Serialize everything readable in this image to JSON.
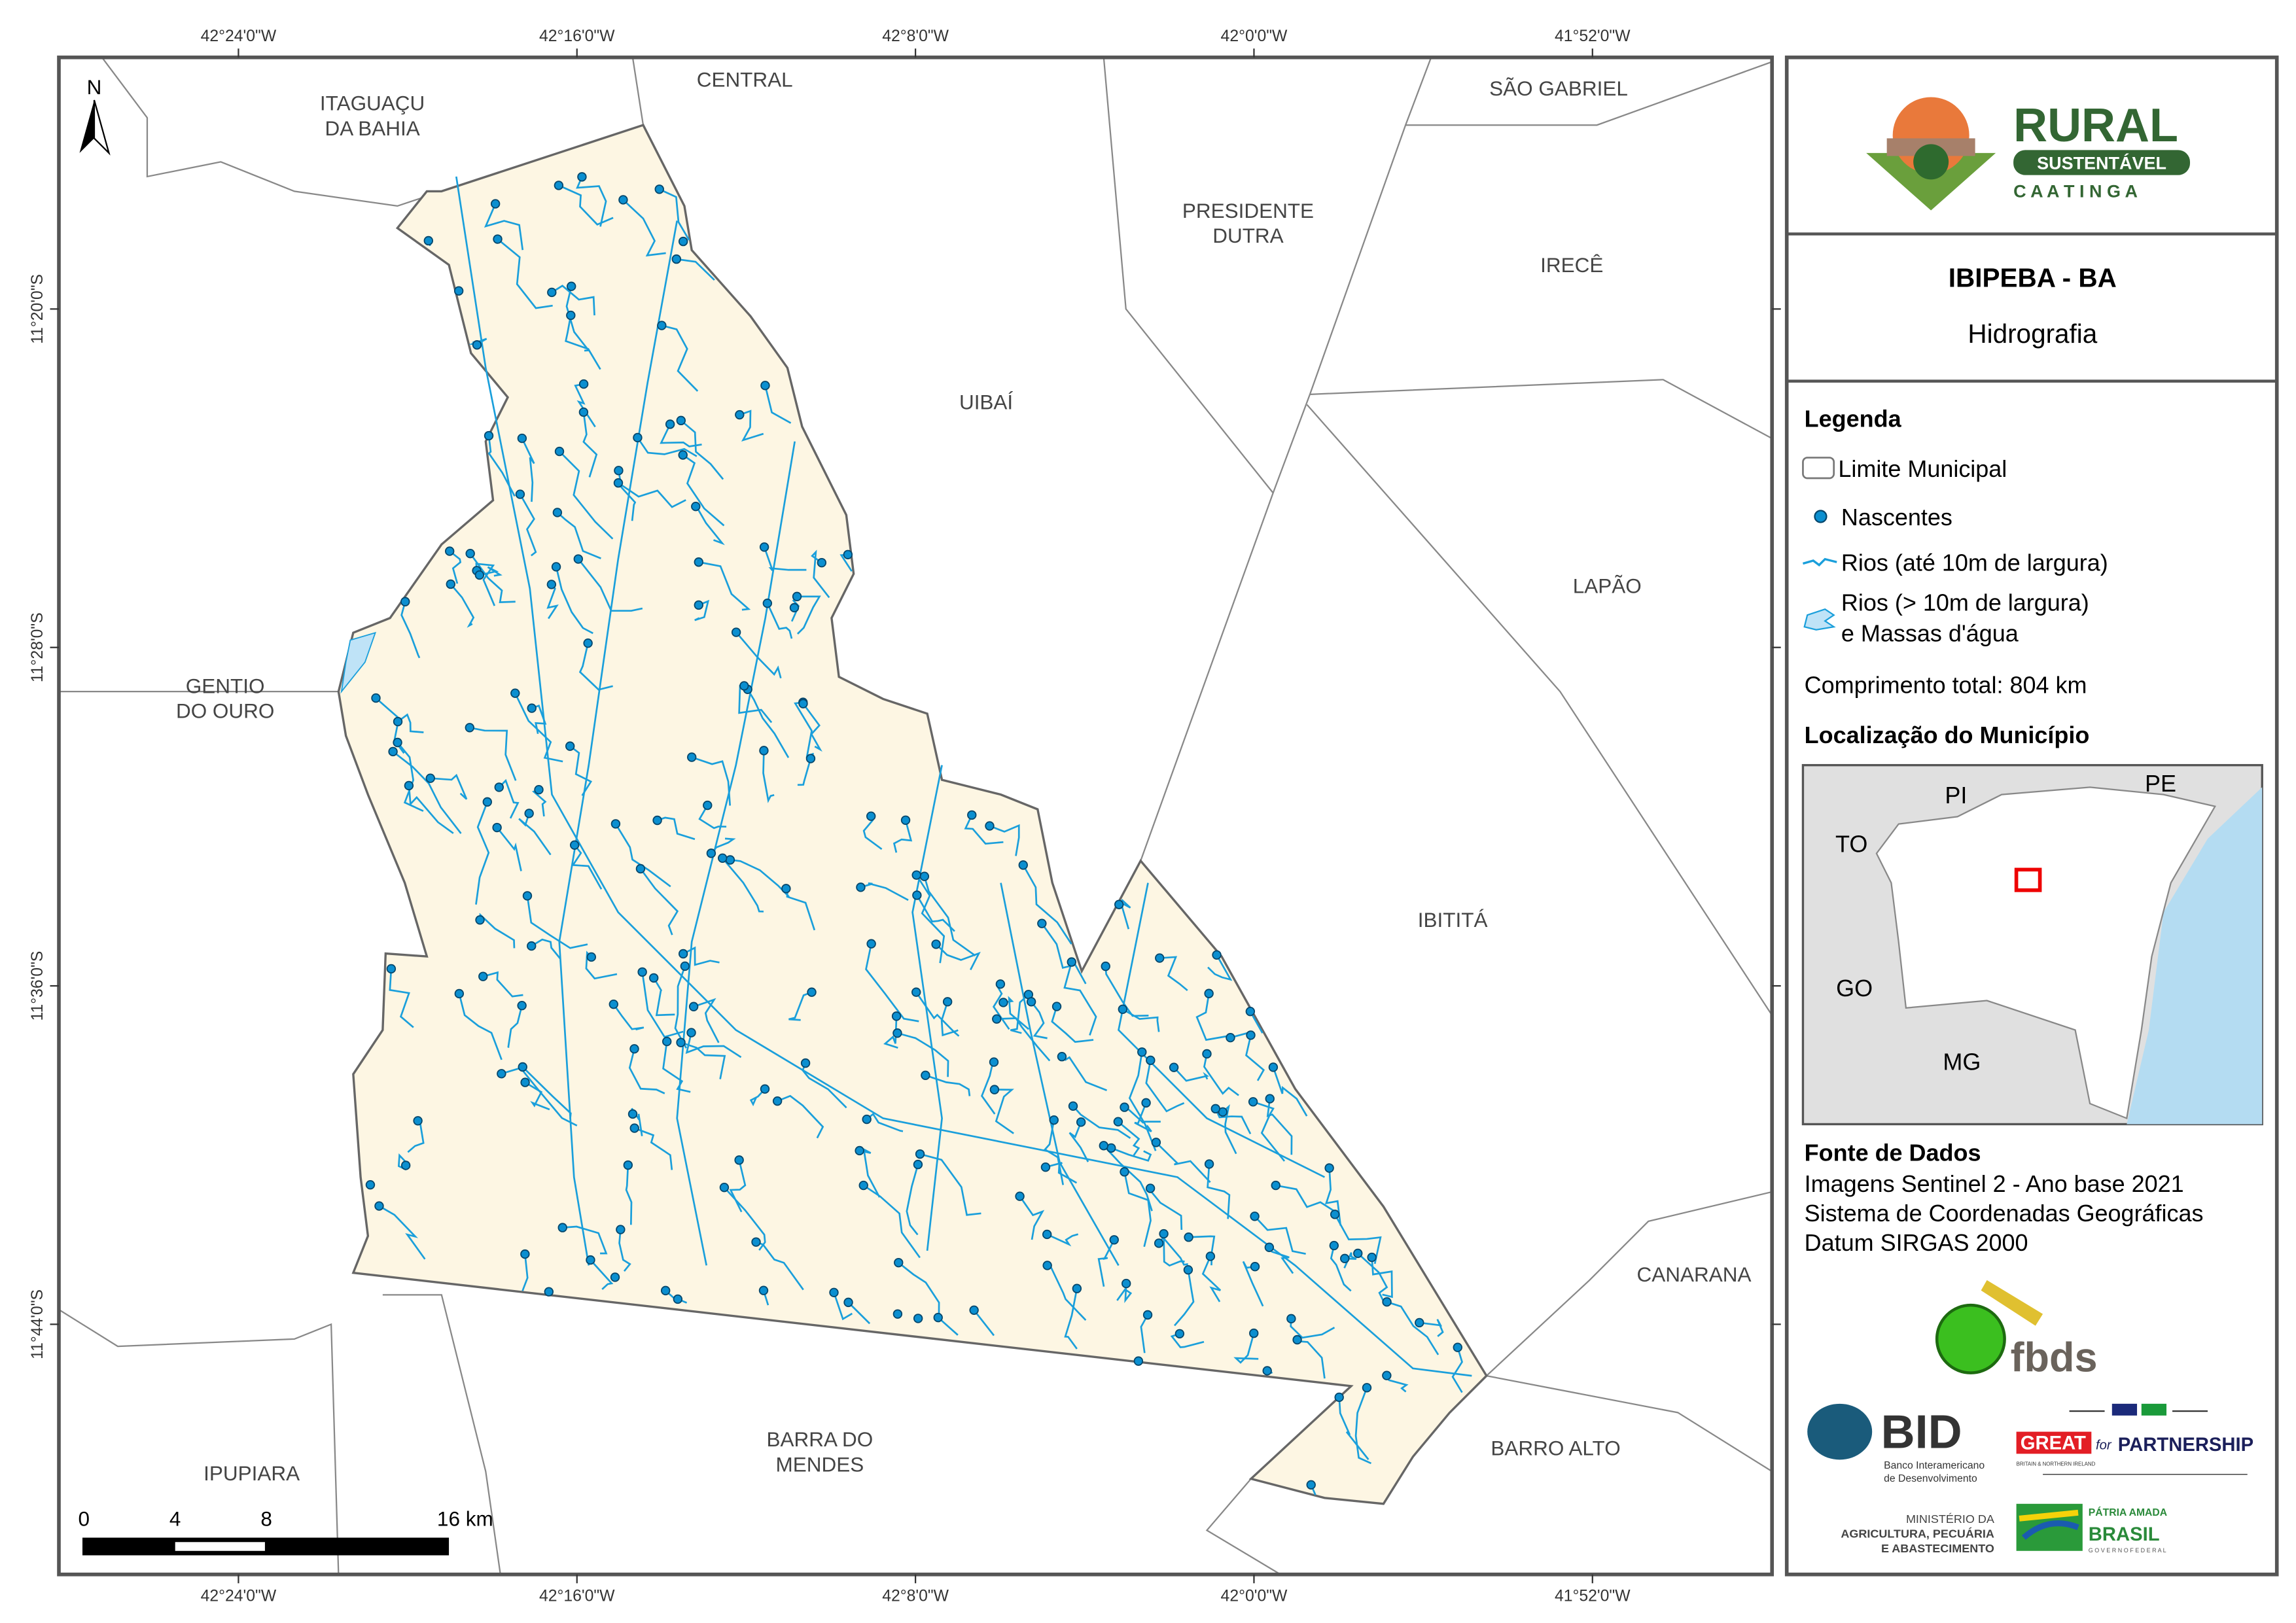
{
  "map": {
    "lon_ticks": [
      "42°24'0\"W",
      "42°16'0\"W",
      "42°8'0\"W",
      "42°0'0\"W",
      "41°52'0\"W"
    ],
    "lat_ticks": [
      "11°20'0\"S",
      "11°28'0\"S",
      "11°36'0\"S",
      "11°44'0\"S"
    ],
    "north_label": "N",
    "neighbors": [
      {
        "l1": "ITAGUAÇU",
        "l2": "DA BAHIA"
      },
      {
        "l1": "CENTRAL",
        "l2": ""
      },
      {
        "l1": "SÃO GABRIEL",
        "l2": ""
      },
      {
        "l1": "PRESIDENTE",
        "l2": "DUTRA"
      },
      {
        "l1": "IRECÊ",
        "l2": ""
      },
      {
        "l1": "UIBAÍ",
        "l2": ""
      },
      {
        "l1": "LAPÃO",
        "l2": ""
      },
      {
        "l1": "GENTIO",
        "l2": "DO OURO"
      },
      {
        "l1": "IBITITÁ",
        "l2": ""
      },
      {
        "l1": "CANARANA",
        "l2": ""
      },
      {
        "l1": "BARRO ALTO",
        "l2": ""
      },
      {
        "l1": "BARRA DO",
        "l2": "MENDES"
      },
      {
        "l1": "IPUPIARA",
        "l2": ""
      }
    ],
    "scale": {
      "labels": [
        "0",
        "4",
        "8",
        "16 km"
      ]
    },
    "colors": {
      "municipality": "#fdf6e3",
      "river": "#1a9fdb",
      "spring": "#0b6fa0",
      "border": "#555555"
    }
  },
  "panel": {
    "logo": {
      "rural": "RURAL",
      "sustentavel": "SUSTENTÁVEL",
      "caatinga": "C A A T I N G A"
    },
    "title": "IBIPEBA - BA",
    "subtitle": "Hidrografia",
    "legend": {
      "heading": "Legenda",
      "items": [
        {
          "label": "Limite Municipal",
          "icon": "boundary-icon"
        },
        {
          "label": "Nascentes",
          "icon": "spring-dot-icon"
        },
        {
          "label": "Rios (até 10m de largura)",
          "icon": "river-line-icon"
        },
        {
          "label": "Rios (> 10m de largura)",
          "label2": "e Massas d'água",
          "icon": "water-body-icon"
        }
      ],
      "total_length": "Comprimento total:  804 km"
    },
    "location": {
      "heading": "Localização do Município",
      "states": [
        "PI",
        "PE",
        "TO",
        "GO",
        "MG"
      ]
    },
    "sources": {
      "heading": "Fonte de Dados",
      "lines": [
        "Imagens Sentinel 2 - Ano base 2021",
        "Sistema de Coordenadas Geográficas",
        "Datum SIRGAS 2000"
      ]
    },
    "partners": {
      "fbds": "fbds",
      "bid": "BID",
      "bid_sub1": "Banco Interamericano",
      "bid_sub2": "de Desenvolvimento",
      "great": "GREAT",
      "for": "for",
      "partnership": "PARTNERSHIP",
      "great_sub": "BRITAIN & NORTHERN IRELAND",
      "min1": "MINISTÉRIO DA",
      "min2": "AGRICULTURA, PECUÁRIA",
      "min3": "E ABASTECIMENTO",
      "patria": "PÁTRIA AMADA",
      "brasil": "BRASIL",
      "gov": "G O V E R N O   F E D E R A L"
    }
  }
}
